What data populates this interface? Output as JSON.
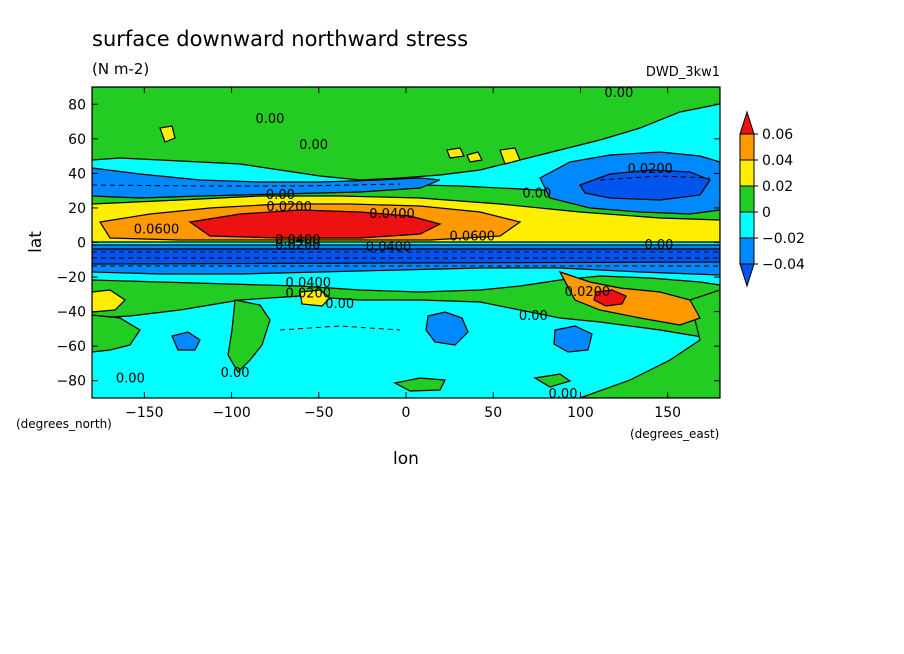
{
  "chart_data": {
    "type": "heatmap",
    "title": "surface downward northward stress",
    "subtitle": "(N m-2)",
    "model_label": "DWD_3kw1",
    "xlabel": "lon",
    "ylabel": "lat",
    "x_unit_label": "(degrees_east)",
    "y_unit_label": "(degrees_north)",
    "xlim": [
      -180,
      180
    ],
    "ylim": [
      -90,
      90
    ],
    "x_ticks": [
      -150,
      -100,
      -50,
      0,
      50,
      100,
      150
    ],
    "y_ticks": [
      -80,
      -60,
      -40,
      -20,
      0,
      20,
      40,
      60,
      80
    ],
    "x_tick_labels": [
      "−150",
      "−100",
      "−50",
      "0",
      "50",
      "100",
      "150"
    ],
    "y_tick_labels": [
      "−80",
      "−60",
      "−40",
      "−20",
      "0",
      "20",
      "40",
      "60",
      "80"
    ],
    "colorbar": {
      "levels": [
        0.06,
        0.04,
        0.02,
        0,
        -0.02,
        -0.04
      ],
      "labels": [
        "0.06",
        "0.04",
        "0.02",
        "0",
        "−0.02",
        "−0.04"
      ],
      "colors": [
        "#ee1111",
        "#ff9900",
        "#ffee00",
        "#22cc22",
        "#00ffff",
        "#0088ff",
        "#0055ee"
      ]
    },
    "contour_labels": [
      {
        "text": "0.00",
        "lon": -78,
        "lat": 72
      },
      {
        "text": "0.00",
        "lon": -53,
        "lat": 57
      },
      {
        "text": "0.00",
        "lon": 122,
        "lat": 87
      },
      {
        "text": "0.0200",
        "lon": 140,
        "lat": 43
      },
      {
        "text": "0.00",
        "lon": 75,
        "lat": 29
      },
      {
        "text": "0.00",
        "lon": -72,
        "lat": 28
      },
      {
        "text": "0.0200",
        "lon": -67,
        "lat": 21
      },
      {
        "text": "0.0400",
        "lon": -8,
        "lat": 17
      },
      {
        "text": "0.0600",
        "lon": -143,
        "lat": 8
      },
      {
        "text": "0.0600",
        "lon": 38,
        "lat": 4
      },
      {
        "text": "0.0400",
        "lon": -62,
        "lat": 2
      },
      {
        "text": "0.0200",
        "lon": -62,
        "lat": -1
      },
      {
        "text": "0.0400",
        "lon": -10,
        "lat": -2
      },
      {
        "text": "0.00",
        "lon": 145,
        "lat": -1
      },
      {
        "text": "0.0400",
        "lon": -56,
        "lat": -23
      },
      {
        "text": "0.0200",
        "lon": -56,
        "lat": -29
      },
      {
        "text": "0.0200",
        "lon": 104,
        "lat": -28
      },
      {
        "text": "0.00",
        "lon": -38,
        "lat": -35
      },
      {
        "text": "0.00",
        "lon": 73,
        "lat": -42
      },
      {
        "text": "0.00",
        "lon": -158,
        "lat": -78
      },
      {
        "text": "0.00",
        "lon": -98,
        "lat": -75
      },
      {
        "text": "0.00",
        "lon": 90,
        "lat": -87
      }
    ]
  }
}
